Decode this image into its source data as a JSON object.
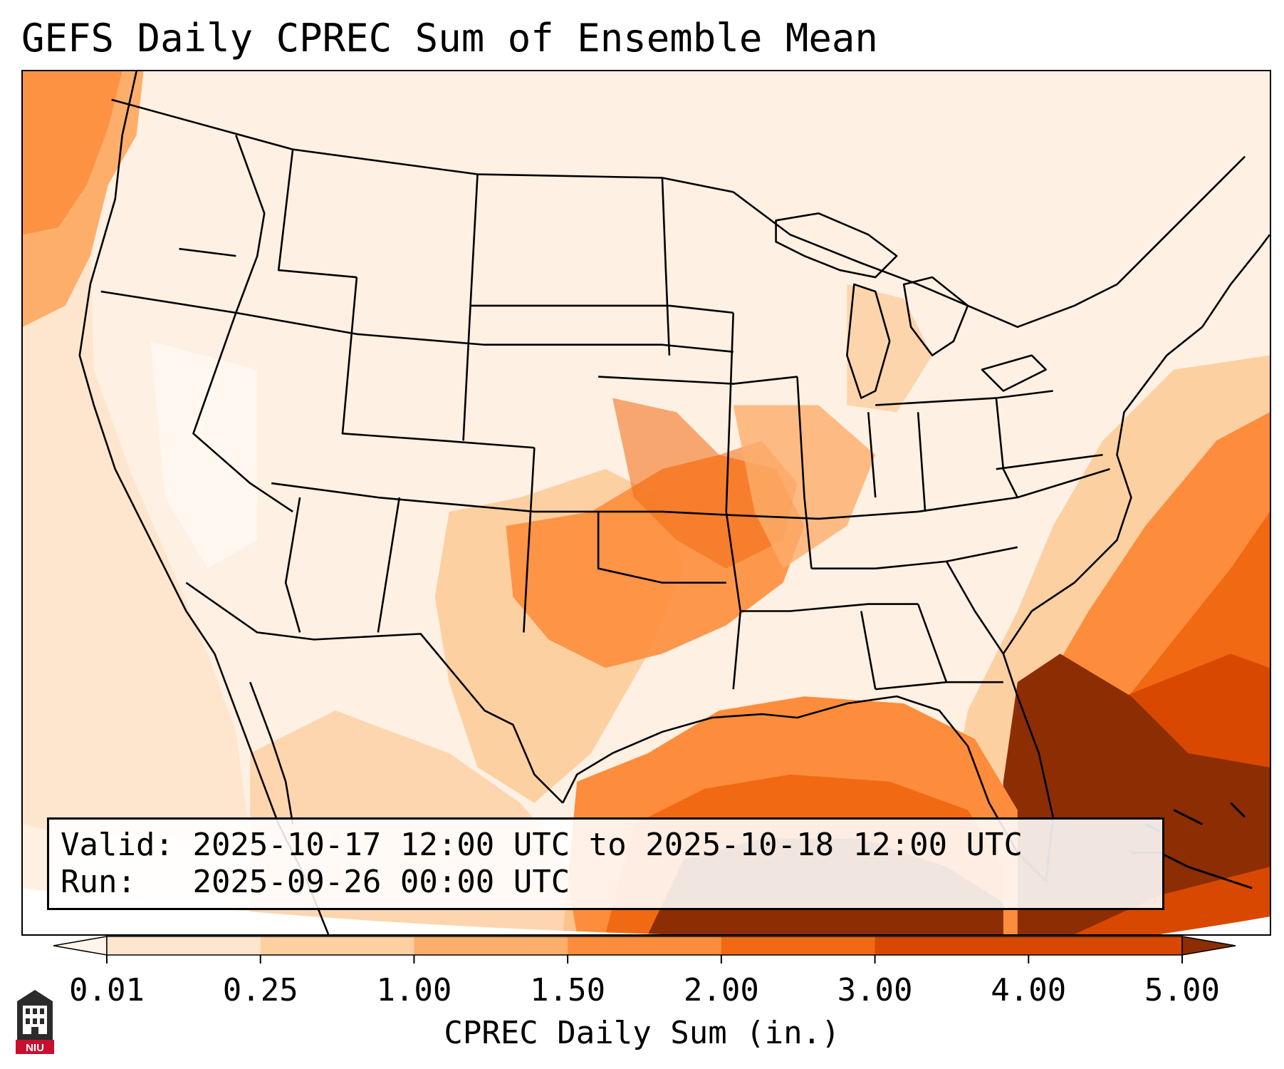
{
  "title": "GEFS Daily CPREC Sum of Ensemble Mean",
  "info": {
    "valid_label": "Valid:",
    "valid_value": "2025-10-17 12:00 UTC to 2025-10-18 12:00 UTC",
    "run_label": "Run:",
    "run_value": "2025-09-26 00:00 UTC"
  },
  "colorbar": {
    "label": "CPREC Daily Sum (in.)",
    "ticks": [
      "0.01",
      "0.25",
      "1.00",
      "1.50",
      "2.00",
      "3.00",
      "4.00",
      "5.00"
    ],
    "colors": [
      "#fff5eb",
      "#fee6ce",
      "#fdd0a2",
      "#fdae6b",
      "#fd8d3c",
      "#f16913",
      "#d94801",
      "#8c2d04"
    ],
    "extend": "both"
  },
  "logo": {
    "text": "NIU",
    "icon": "niu-building-icon"
  }
}
